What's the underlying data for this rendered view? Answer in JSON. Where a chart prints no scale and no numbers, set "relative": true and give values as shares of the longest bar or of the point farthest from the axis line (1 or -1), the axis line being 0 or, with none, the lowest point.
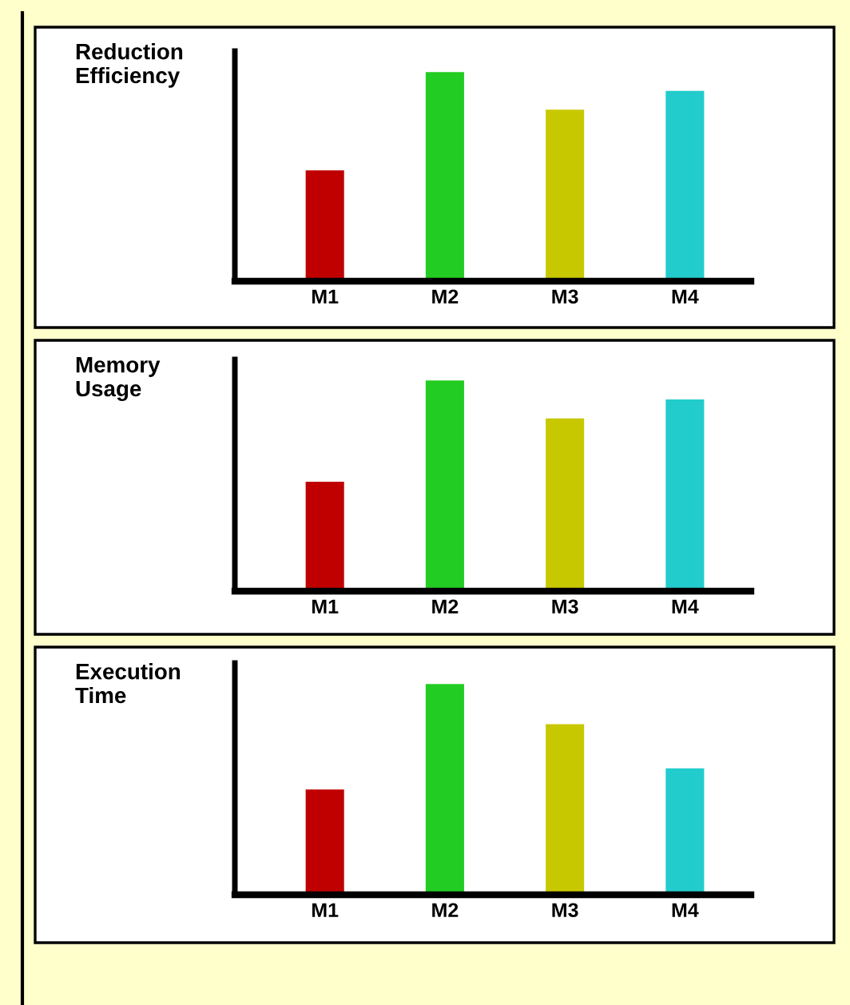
{
  "chart_data": [
    {
      "type": "bar",
      "title": "Reduction\nEfficiency",
      "relative": true,
      "categories": [
        "M1",
        "M2",
        "M3",
        "M4"
      ],
      "values": [
        0.53,
        1,
        0.82,
        0.91
      ],
      "colors": [
        "#c00000",
        "#22cc22",
        "#c8c800",
        "#22cccc"
      ],
      "grid": false,
      "legend": false
    },
    {
      "type": "bar",
      "title": "Memory\nUsage",
      "relative": true,
      "categories": [
        "M1",
        "M2",
        "M3",
        "M4"
      ],
      "values": [
        0.52,
        1,
        0.82,
        0.91
      ],
      "colors": [
        "#c00000",
        "#22cc22",
        "#c8c800",
        "#22cccc"
      ],
      "grid": false,
      "legend": false
    },
    {
      "type": "bar",
      "title": "Execution\nTime",
      "relative": true,
      "categories": [
        "M1",
        "M2",
        "M3",
        "M4"
      ],
      "values": [
        0.5,
        1,
        0.81,
        0.6
      ],
      "colors": [
        "#c00000",
        "#22cc22",
        "#c8c800",
        "#22cccc"
      ],
      "grid": false,
      "legend": false
    }
  ]
}
